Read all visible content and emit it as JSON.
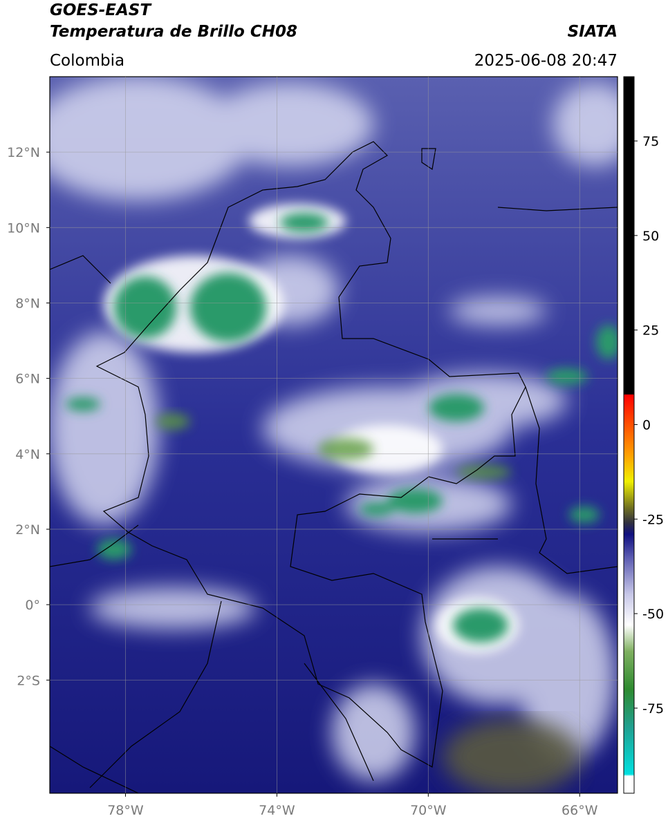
{
  "chart_data": {
    "type": "map",
    "title": "GOES-EAST",
    "subtitle": "Temperatura de Brillo CH08",
    "source": "SIATA",
    "region": "Colombia",
    "timestamp": "2025-06-08 20:47",
    "xlim": [
      -80,
      -65
    ],
    "ylim": [
      -5,
      14
    ],
    "xticks": [
      {
        "value": -78,
        "label": "78°W"
      },
      {
        "value": -74,
        "label": "74°W"
      },
      {
        "value": -70,
        "label": "70°W"
      },
      {
        "value": -66,
        "label": "66°W"
      }
    ],
    "yticks": [
      {
        "value": 12,
        "label": "12°N"
      },
      {
        "value": 10,
        "label": "10°N"
      },
      {
        "value": 8,
        "label": "8°N"
      },
      {
        "value": 6,
        "label": "6°N"
      },
      {
        "value": 4,
        "label": "4°N"
      },
      {
        "value": 2,
        "label": "2°N"
      },
      {
        "value": 0,
        "label": "0°"
      },
      {
        "value": -2,
        "label": "2°S"
      }
    ],
    "grid": true,
    "colorbar": {
      "lim": [
        -97.5,
        92
      ],
      "ticks": [
        75,
        50,
        25,
        0,
        -25,
        -50,
        -75
      ],
      "stops": [
        {
          "value": -97.5,
          "color": "#ffffff"
        },
        {
          "value": -93,
          "color": "#ffffff"
        },
        {
          "value": -92.5,
          "color": "#00e0e0"
        },
        {
          "value": -80,
          "color": "#20a090"
        },
        {
          "value": -70,
          "color": "#2e8b30"
        },
        {
          "value": -60,
          "color": "#7fb060"
        },
        {
          "value": -53,
          "color": "#ffffff"
        },
        {
          "value": -45,
          "color": "#c8c8e8"
        },
        {
          "value": -35,
          "color": "#5a5ab0"
        },
        {
          "value": -29,
          "color": "#101080"
        },
        {
          "value": -26,
          "color": "#303040"
        },
        {
          "value": -22,
          "color": "#707020"
        },
        {
          "value": -15,
          "color": "#f0f000"
        },
        {
          "value": -8,
          "color": "#ffa000"
        },
        {
          "value": 7.9,
          "color": "#ff0000"
        },
        {
          "value": 8,
          "color": "#000000"
        },
        {
          "value": 92,
          "color": "#000000"
        }
      ]
    }
  }
}
